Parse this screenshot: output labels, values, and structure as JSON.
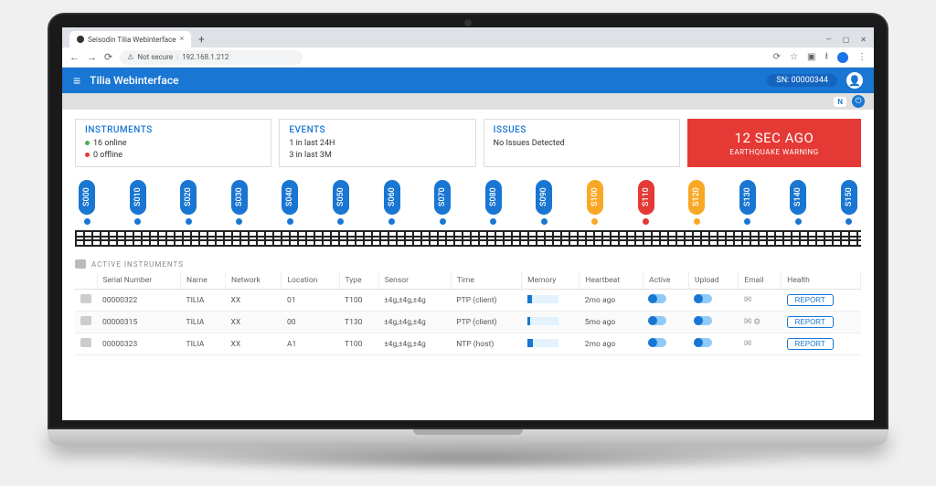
{
  "browser": {
    "tab_title": "Seisodin Tilia Webinterface",
    "url": "192.168.1.212",
    "not_secure": "Not secure"
  },
  "app": {
    "title": "Tilia Webinterface",
    "sn_label": "SN: 00000344",
    "sub_badge": "N"
  },
  "cards": {
    "instruments": {
      "title": "INSTRUMENTS",
      "online": "16 online",
      "offline": "0 offline"
    },
    "events": {
      "title": "EVENTS",
      "l1": "1 in last 24H",
      "l2": "3 in last 3M"
    },
    "issues": {
      "title": "ISSUES",
      "text": "No Issues Detected"
    },
    "alert": {
      "big": "12 SEC AGO",
      "small": "EARTHQUAKE WARNING",
      "bg": "#e53935"
    }
  },
  "sensors": [
    {
      "id": "S000",
      "color": "blue"
    },
    {
      "id": "S010",
      "color": "blue"
    },
    {
      "id": "S020",
      "color": "blue"
    },
    {
      "id": "S030",
      "color": "blue"
    },
    {
      "id": "S040",
      "color": "blue"
    },
    {
      "id": "S050",
      "color": "blue"
    },
    {
      "id": "S060",
      "color": "blue"
    },
    {
      "id": "S070",
      "color": "blue"
    },
    {
      "id": "S080",
      "color": "blue"
    },
    {
      "id": "S090",
      "color": "blue"
    },
    {
      "id": "S100",
      "color": "orange"
    },
    {
      "id": "S110",
      "color": "red"
    },
    {
      "id": "S120",
      "color": "orange"
    },
    {
      "id": "S130",
      "color": "blue"
    },
    {
      "id": "S140",
      "color": "blue"
    },
    {
      "id": "S150",
      "color": "blue"
    }
  ],
  "colors": {
    "blue": "#1976d2",
    "orange": "#f9a825",
    "red": "#e53935",
    "green": "#4caf50"
  },
  "table": {
    "section": "ACTIVE INSTRUMENTS",
    "headers": [
      "Serial Number",
      "Name",
      "Network",
      "Location",
      "Type",
      "Sensor",
      "Time",
      "Memory",
      "Heartbeat",
      "Active",
      "Upload",
      "Email",
      "Health"
    ],
    "rows": [
      {
        "sn": "00000322",
        "name": "TILIA",
        "net": "XX",
        "loc": "01",
        "type": "T100",
        "sensor": "±4g,±4g,±4g",
        "time": "PTP (client)",
        "mem": 15,
        "hb": "2mo ago",
        "email_extra": false
      },
      {
        "sn": "00000315",
        "name": "TILIA",
        "net": "XX",
        "loc": "00",
        "type": "T130",
        "sensor": "±4g,±4g,±4g",
        "time": "PTP (client)",
        "mem": 10,
        "hb": "5mo ago",
        "email_extra": true
      },
      {
        "sn": "00000323",
        "name": "TILIA",
        "net": "XX",
        "loc": "A1",
        "type": "T100",
        "sensor": "±4g,±4g,±4g",
        "time": "NTP (host)",
        "mem": 20,
        "hb": "2mo ago",
        "email_extra": false
      }
    ],
    "report_label": "REPORT"
  }
}
